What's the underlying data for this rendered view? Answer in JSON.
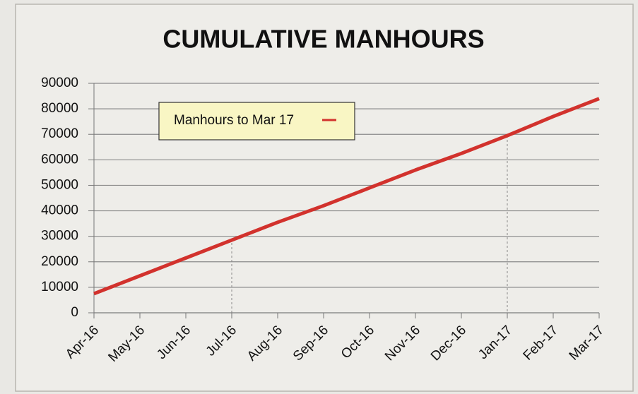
{
  "chart_data": {
    "type": "line",
    "title": "CUMULATIVE MANHOURS",
    "categories": [
      "Apr-16",
      "May-16",
      "Jun-16",
      "Jul-16",
      "Aug-16",
      "Sep-16",
      "Oct-16",
      "Nov-16",
      "Dec-16",
      "Jan-17",
      "Feb-17",
      "Mar-17"
    ],
    "series": [
      {
        "name": "Manhours to Mar 17",
        "color": "#d2322d",
        "values": [
          7500,
          14500,
          21500,
          28500,
          35500,
          42000,
          49000,
          56000,
          62500,
          69500,
          77000,
          84000
        ]
      }
    ],
    "ylim": [
      0,
      90000
    ],
    "yticks": [
      0,
      10000,
      20000,
      30000,
      40000,
      50000,
      60000,
      70000,
      80000,
      90000
    ],
    "grid": true,
    "legend": "top-left"
  }
}
